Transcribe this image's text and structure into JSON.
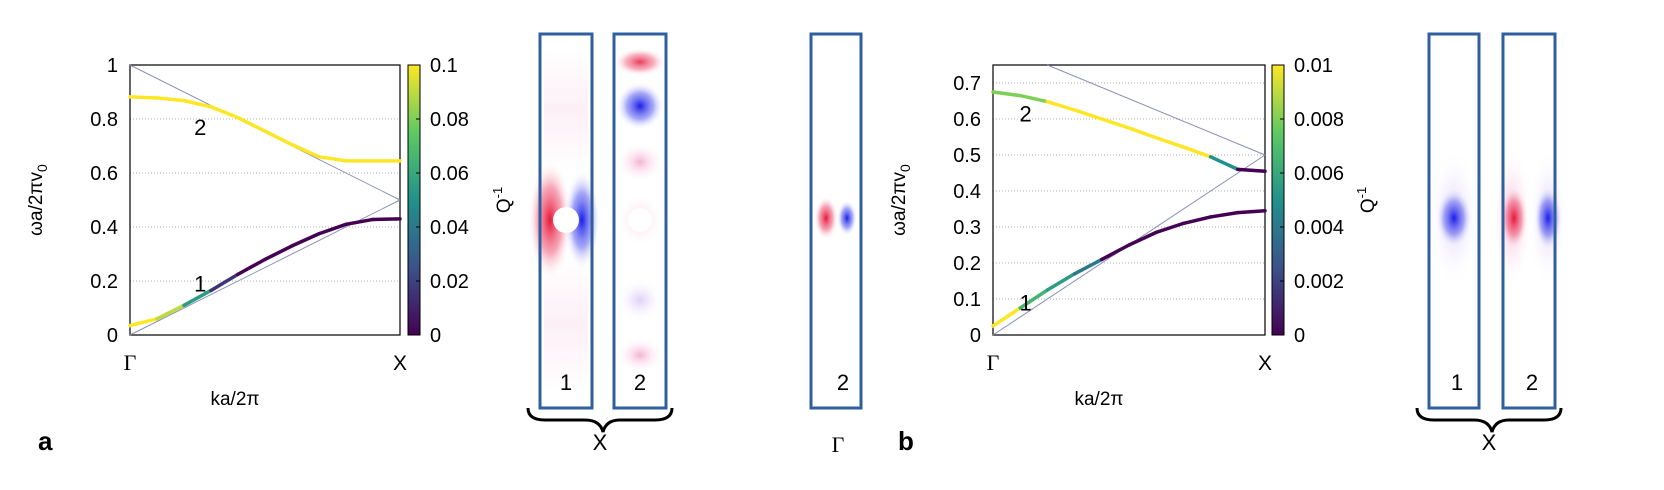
{
  "colors": {
    "frame": "#2f5f9e",
    "light_line": "#8a90b8",
    "red": "#e8173a",
    "blue": "#1a1fe8",
    "viridis": [
      "#440154",
      "#3b528b",
      "#21918c",
      "#5ec962",
      "#fde725"
    ]
  },
  "panels": [
    {
      "letter": "a",
      "chart_data": {
        "type": "line",
        "xlabel": "ka/2π",
        "ylabel": "ωa/2πv",
        "ylabel_sub": "0",
        "x_ticks": [
          "Γ",
          "X"
        ],
        "y_ticks": [
          "0",
          "0.2",
          "0.4",
          "0.6",
          "0.8",
          "1"
        ],
        "ylim": [
          0,
          1
        ],
        "xlim": [
          0,
          0.5
        ],
        "grid": true,
        "colorbar": {
          "label": "Q",
          "label_sup": "-1",
          "ticks": [
            "0",
            "0.02",
            "0.04",
            "0.06",
            "0.08",
            "0.1"
          ],
          "range": [
            0,
            0.1
          ]
        },
        "band_labels": [
          {
            "text": "1",
            "x": 0.13,
            "y": 0.19
          },
          {
            "text": "2",
            "x": 0.13,
            "y": 0.77
          }
        ],
        "series": [
          {
            "x": [
              0,
              0.05,
              0.1,
              0.15,
              0.2,
              0.25,
              0.3,
              0.35,
              0.4,
              0.45,
              0.5
            ],
            "y": [
              0.882,
              0.878,
              0.868,
              0.845,
              0.805,
              0.755,
              0.705,
              0.66,
              0.645,
              0.645,
              0.645
            ],
            "q": [
              0.1,
              0.1,
              0.1,
              0.1,
              0.1,
              0.1,
              0.1,
              0.1,
              0.1,
              0.1,
              0.1
            ]
          },
          {
            "x": [
              0,
              0.05,
              0.1,
              0.15,
              0.2,
              0.25,
              0.3,
              0.35,
              0.4,
              0.45,
              0.5
            ],
            "y": [
              0.035,
              0.06,
              0.11,
              0.165,
              0.225,
              0.28,
              0.33,
              0.375,
              0.41,
              0.428,
              0.43
            ],
            "q": [
              0.1,
              0.1,
              0.08,
              0.03,
              0,
              0,
              0,
              0,
              0,
              0,
              0
            ]
          }
        ],
        "light_lines": [
          {
            "x": [
              0,
              0.5
            ],
            "y": [
              1,
              0.5
            ]
          },
          {
            "x": [
              0,
              0.5
            ],
            "y": [
              0,
              0.5
            ]
          }
        ]
      },
      "modes": [
        {
          "label": "1",
          "hole": true,
          "pattern": "dipole"
        },
        {
          "label": "2",
          "hole": true,
          "pattern": "standing"
        }
      ],
      "brace_label": "X"
    },
    {
      "letter": "b",
      "chart_data": {
        "type": "line",
        "xlabel": "ka/2π",
        "ylabel": "ωa/2πv",
        "ylabel_sub": "0",
        "x_ticks": [
          "Γ",
          "X"
        ],
        "y_ticks": [
          "0",
          "0.1",
          "0.2",
          "0.3",
          "0.4",
          "0.5",
          "0.6",
          "0.7"
        ],
        "ylim": [
          0,
          0.75
        ],
        "xlim": [
          0,
          0.5
        ],
        "grid": true,
        "colorbar": {
          "label": "Q",
          "label_sup": "-1",
          "ticks": [
            "0",
            "0.002",
            "0.004",
            "0.006",
            "0.008",
            "0.01"
          ],
          "range": [
            0,
            0.01
          ]
        },
        "band_labels": [
          {
            "text": "1",
            "x": 0.06,
            "y": 0.09
          },
          {
            "text": "2",
            "x": 0.06,
            "y": 0.615
          }
        ],
        "series": [
          {
            "x": [
              0,
              0.05,
              0.1,
              0.15,
              0.2,
              0.25,
              0.3,
              0.35,
              0.4,
              0.45,
              0.5
            ],
            "y": [
              0.675,
              0.665,
              0.648,
              0.625,
              0.6,
              0.575,
              0.548,
              0.522,
              0.495,
              0.46,
              0.455
            ],
            "q": [
              0.01,
              0.006,
              0.01,
              0.01,
              0.01,
              0.01,
              0.01,
              0.01,
              0.01,
              0,
              0
            ]
          },
          {
            "x": [
              0,
              0.05,
              0.1,
              0.15,
              0.2,
              0.25,
              0.3,
              0.35,
              0.4,
              0.45,
              0.5
            ],
            "y": [
              0.025,
              0.075,
              0.125,
              0.17,
              0.21,
              0.25,
              0.285,
              0.31,
              0.328,
              0.34,
              0.345
            ],
            "q": [
              0.01,
              0.01,
              0.003,
              0.008,
              0,
              0,
              0,
              0,
              0,
              0,
              0
            ]
          }
        ],
        "light_lines": [
          {
            "x": [
              0.1,
              0.5
            ],
            "y": [
              0.75,
              0.5
            ]
          },
          {
            "x": [
              0,
              0.5
            ],
            "y": [
              0,
              0.5
            ]
          }
        ]
      },
      "modes": [
        {
          "label": "1",
          "hole": false,
          "pattern": "blob"
        },
        {
          "label": "2",
          "hole": false,
          "pattern": "dipole"
        }
      ],
      "brace_label": "X"
    }
  ],
  "gamma_mode": {
    "label": "2",
    "below_label": "Γ",
    "pattern": "dipole"
  }
}
